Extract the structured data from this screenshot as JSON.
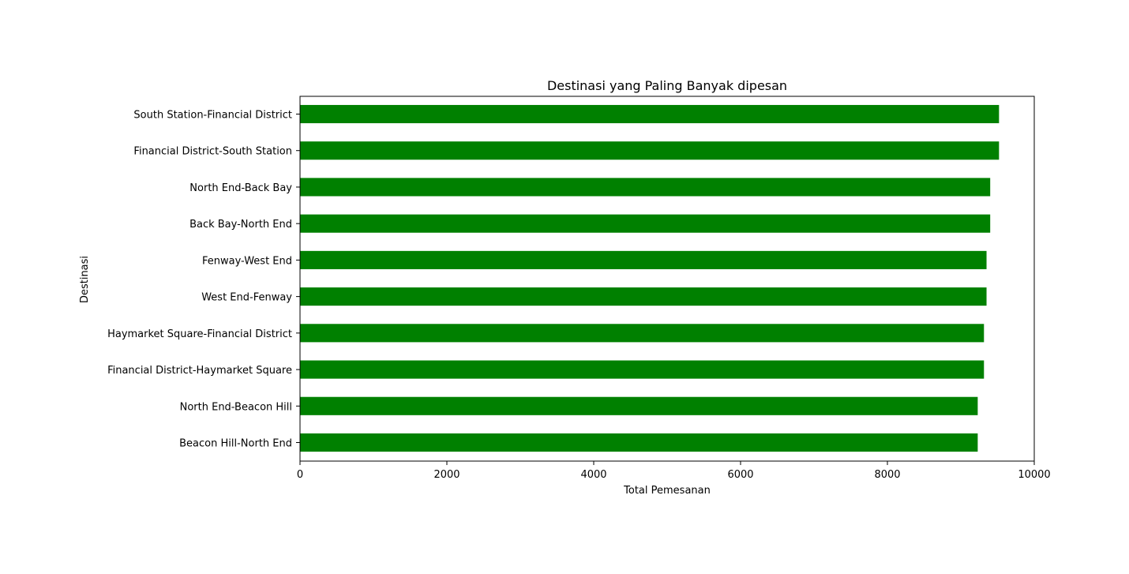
{
  "chart_data": {
    "type": "bar",
    "orientation": "horizontal",
    "title": "Destinasi yang Paling Banyak dipesan",
    "xlabel": "Total Pemesanan",
    "ylabel": "Destinasi",
    "xlim": [
      0,
      10000
    ],
    "xticks": [
      0,
      2000,
      4000,
      6000,
      8000,
      10000
    ],
    "xtick_labels": [
      "0",
      "2000",
      "4000",
      "6000",
      "8000",
      "10000"
    ],
    "grid": false,
    "legend": "none",
    "bar_color": "#008000",
    "categories": [
      "South Station-Financial District",
      "Financial District-South Station",
      "North End-Back Bay",
      "Back Bay-North End",
      "Fenway-West End",
      "West End-Fenway",
      "Haymarket Square-Financial District",
      "Financial District-Haymarket Square",
      "North End-Beacon Hill",
      "Beacon Hill-North End"
    ],
    "values": [
      9520,
      9520,
      9400,
      9400,
      9350,
      9350,
      9315,
      9315,
      9230,
      9230
    ]
  }
}
